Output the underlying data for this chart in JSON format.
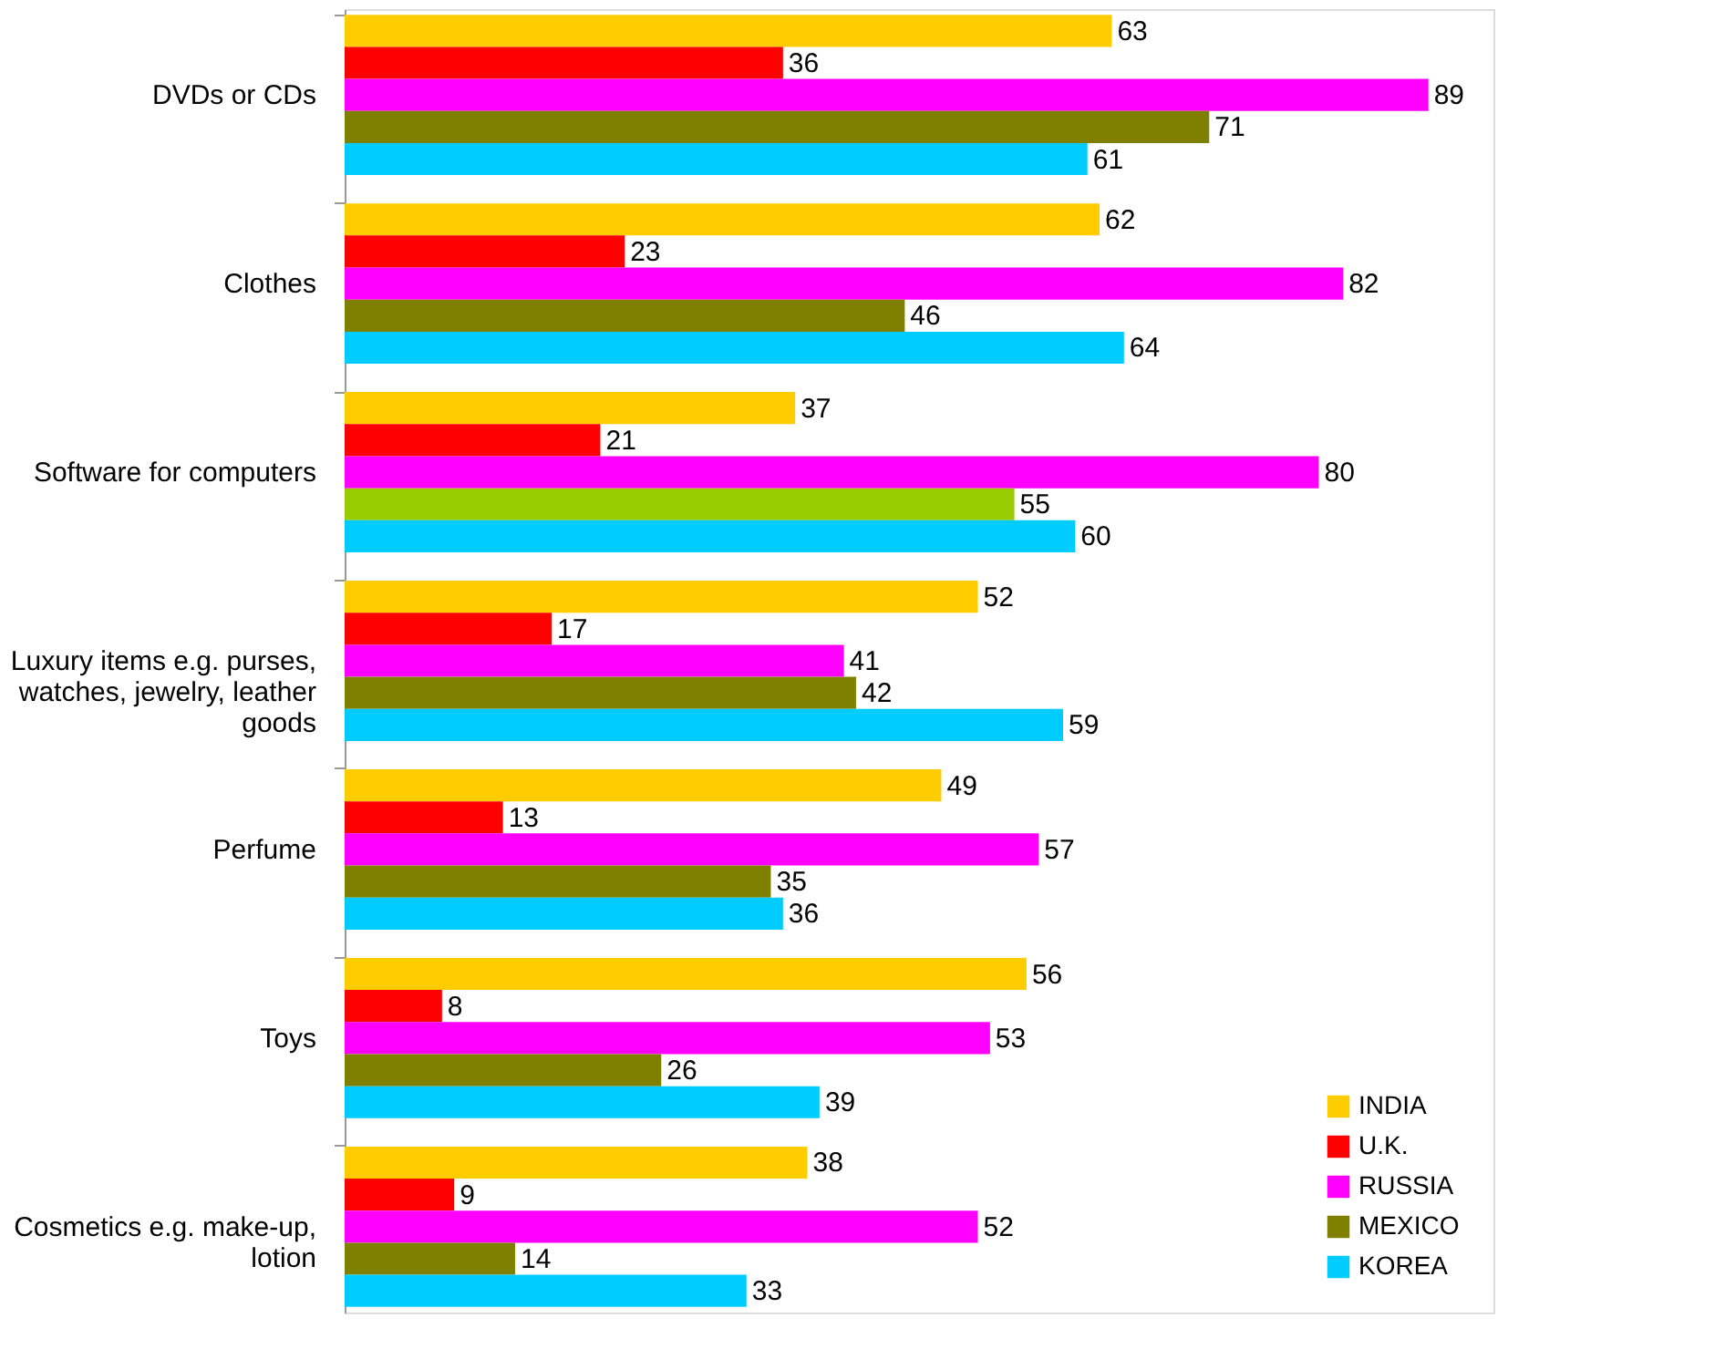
{
  "chart_data": {
    "type": "bar",
    "orientation": "horizontal",
    "categories": [
      "DVDs or CDs",
      "Clothes",
      "Software for computers",
      "Luxury items e.g. purses, watches, jewelry, leather goods",
      "Perfume",
      "Toys",
      "Cosmetics e.g. make-up, lotion"
    ],
    "series": [
      {
        "name": "INDIA",
        "color": "#ffcc00",
        "values": [
          63,
          62,
          37,
          52,
          49,
          56,
          38
        ]
      },
      {
        "name": "U.K.",
        "color": "#ff0000",
        "values": [
          36,
          23,
          21,
          17,
          13,
          8,
          9
        ]
      },
      {
        "name": "RUSSIA",
        "color": "#ff00ff",
        "values": [
          89,
          82,
          80,
          41,
          57,
          53,
          52
        ]
      },
      {
        "name": "MEXICO",
        "color": "#808000",
        "colors": [
          "#808000",
          "#808000",
          "#99cc00",
          "#808000",
          "#808000",
          "#808000",
          "#808000"
        ],
        "values": [
          71,
          46,
          55,
          42,
          35,
          26,
          14
        ]
      },
      {
        "name": "KOREA",
        "color": "#00ccff",
        "values": [
          61,
          64,
          60,
          59,
          36,
          39,
          33
        ]
      }
    ],
    "data_labels": true,
    "legend": "bottom right"
  }
}
